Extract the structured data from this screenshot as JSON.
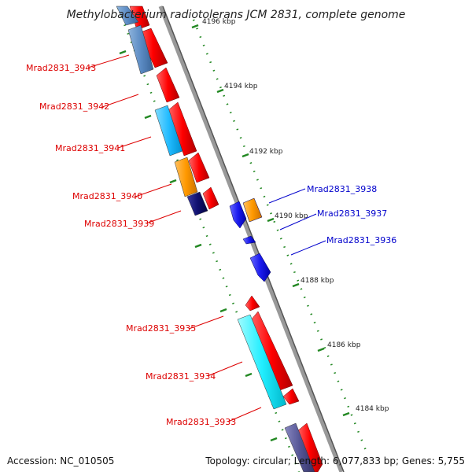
{
  "title": "Methylobacterium radiotolerans JCM 2831, complete genome",
  "footer": {
    "accession": "Accession: NC_010505",
    "topology": "Topology: circular; Length: 6,077,833 bp; Genes: 5,755"
  },
  "colors": {
    "reverse_label": "#dd0000",
    "forward_label": "#0000cc",
    "backbone": "#999999",
    "tick": "#228822"
  },
  "ticks": [
    {
      "label": "4196 kbp"
    },
    {
      "label": "4194 kbp"
    },
    {
      "label": "4192 kbp"
    },
    {
      "label": "4190 kbp"
    },
    {
      "label": "4188 kbp"
    },
    {
      "label": "4186 kbp"
    },
    {
      "label": "4184 kbp"
    }
  ],
  "genes_left": [
    {
      "label": "Mrad2831_3943"
    },
    {
      "label": "Mrad2831_3942"
    },
    {
      "label": "Mrad2831_3941"
    },
    {
      "label": "Mrad2831_3940"
    },
    {
      "label": "Mrad2831_3939"
    },
    {
      "label": "Mrad2831_3935"
    },
    {
      "label": "Mrad2831_3934"
    },
    {
      "label": "Mrad2831_3933"
    }
  ],
  "genes_right": [
    {
      "label": "Mrad2831_3938"
    },
    {
      "label": "Mrad2831_3937"
    },
    {
      "label": "Mrad2831_3936"
    }
  ]
}
